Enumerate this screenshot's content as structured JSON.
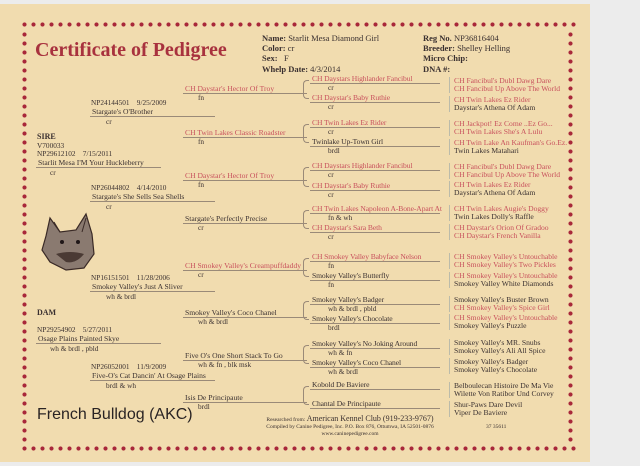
{
  "title": "Certificate of Pedigree",
  "details": {
    "name_label": "Name:",
    "name": "Starlit Mesa Diamond Girl",
    "color_label": "Color:",
    "color": "cr",
    "sex_label": "Sex:",
    "sex": "F",
    "whelp_label": "Whelp Date:",
    "whelp": "4/3/2014",
    "reg_label": "Reg No.",
    "reg": "NP36816404",
    "breeder_label": "Breeder:",
    "breeder": "Shelley Helling",
    "chip_label": "Micro Chip:",
    "dna_label": "DNA #:"
  },
  "gen1": [
    {
      "label": "SIRE",
      "extra": "V700033",
      "reg": "NP29612102",
      "date": "7/15/2011",
      "name": "Starlit Mesa I'M Your Huckleberry",
      "color": "cr"
    },
    {
      "label": "DAM",
      "extra": "",
      "reg": "NP29254902",
      "date": "5/27/2011",
      "name": "Osage Plains Painted Skye",
      "color": "wh & brdl , pbld"
    }
  ],
  "gen2": [
    {
      "reg": "NP24144501",
      "date": "9/25/2009",
      "name": "Stargate's O'Brother",
      "color": "cr"
    },
    {
      "reg": "NP26044802",
      "date": "4/14/2010",
      "name": "Stargate's She Sells Sea Shells",
      "color": "cr"
    },
    {
      "reg": "NP16151501",
      "date": "11/28/2006",
      "name": "Smokey Valley's Just A Sliver",
      "color": "wh & brdl"
    },
    {
      "reg": "NP26052001",
      "date": "11/9/2009",
      "name": "Five-O's Cat Dancin' At Osage Plains",
      "color": "brdl & wh"
    }
  ],
  "gen3": [
    {
      "name": "CH Daystar's Hector Of Troy",
      "color": "fn"
    },
    {
      "name": "CH Twin Lakes Classic Roadster",
      "color": "fn"
    },
    {
      "name": "CH Daystar's Hector Of Troy",
      "color": "fn"
    },
    {
      "name": "Stargate's Perfectly Precise",
      "color": "cr"
    },
    {
      "name": "CH Smokey Valley's Creampuffdaddy",
      "color": "cr"
    },
    {
      "name": "Smokey Valley's Coco Chanel",
      "color": "wh & brdl"
    },
    {
      "name": "Five O's One Short Stack To Go",
      "color": "wh & fn , blk msk"
    },
    {
      "name": "Isis De Principaute",
      "color": "brdl"
    }
  ],
  "gen4": [
    {
      "name": "CH Daystars Highlander Fancibul",
      "color": "cr"
    },
    {
      "name": "CH Daystar's Baby Ruthie",
      "color": "cr"
    },
    {
      "name": "CH Twin Lakes Ez Rider",
      "color": "cr"
    },
    {
      "name": "Twinlake Up-Town Girl",
      "color": "brdl"
    },
    {
      "name": "CH Daystars Highlander Fancibul",
      "color": "cr"
    },
    {
      "name": "CH Daystar's Baby Ruthie",
      "color": "cr"
    },
    {
      "name": "CH Twin Lakes Napoleon A-Bone-Apart At",
      "color": "fn & wh"
    },
    {
      "name": "CH Daystar's Sara Beth",
      "color": "cr"
    },
    {
      "name": "CH Smokey Valley Babyface Nelson",
      "color": "fn"
    },
    {
      "name": "Smokey Valley's Butterfly",
      "color": "fn"
    },
    {
      "name": "Smokey Valley's Badger",
      "color": "wh & brdl , pbld"
    },
    {
      "name": "Smokey Valley's Chocolate",
      "color": "brdl"
    },
    {
      "name": "Smokey Valley's No Joking Around",
      "color": "wh & fn"
    },
    {
      "name": "Smokey Valley's Coco Chanel",
      "color": "wh & brdl"
    },
    {
      "name": "Kobold De Baviere",
      "color": ""
    },
    {
      "name": "Chantal De Principaute",
      "color": ""
    }
  ],
  "gen5": [
    "CH Fancibul's Dubl Dawg Dare",
    "CH Fancibul Up Above The World",
    "CH Twin Lakes Ez Rider",
    "Daystar's Athena Of Adam",
    "CH Jackpot! Ez Come ..Ez Go...",
    "CH Twin Lakes She's A Lulu",
    "CH Twin Lake An Kaufman's Go.Ez.",
    "Twin Lakes Matahari",
    "CH Fancibul's Dubl Dawg Dare",
    "CH Fancibul Up Above The World",
    "CH Twin Lakes Ez Rider",
    "Daystar's Athena Of Adam",
    "CH Twin Lakes Augie's Doggy",
    "Twin Lakes Dolly's Raffle",
    "CH Daystar's Orion Of Gradoo",
    "CH Daystar's French Vanilla",
    "CH Smokey Valley's Untouchable",
    "CH Smokey Valley's Two Pickles",
    "CH Smokey Valley's Untouchable",
    "Smokey Valley White Diamonds",
    "Smokey Valley's Buster Brown",
    "CH Smokey Valley's Spice Girl",
    "CH Smokey Valley's Untouchable",
    "Smokey Valley's Puzzle",
    "Smokey Valley's MR. Snubs",
    "Smokey Valley's Ali All Spice",
    "Smokey Valley's Badger",
    "Smokey Valley's Chocolate",
    "Belboulecan Histoire De Ma Vie",
    "Wilette Von Ratibor Und Corvey",
    "Shur-Paws Dare Devil",
    "Viper De Baviere"
  ],
  "breed": "French Bulldog   (AKC)",
  "footer": {
    "researched_label": "Researched from:",
    "researched": "American Kennel Club  (919-233-9767)",
    "compiled": "Compiled by Canine Pedigree, Inc. P.O. Box 876, Ottumwa, IA  52501-0876",
    "website": "www.caninepedigree.com",
    "code": "37 35611"
  },
  "colors": {
    "champion": "#c8505c",
    "border": "#a8283a",
    "title": "#a8323e",
    "paper": "#f1dcaf"
  }
}
